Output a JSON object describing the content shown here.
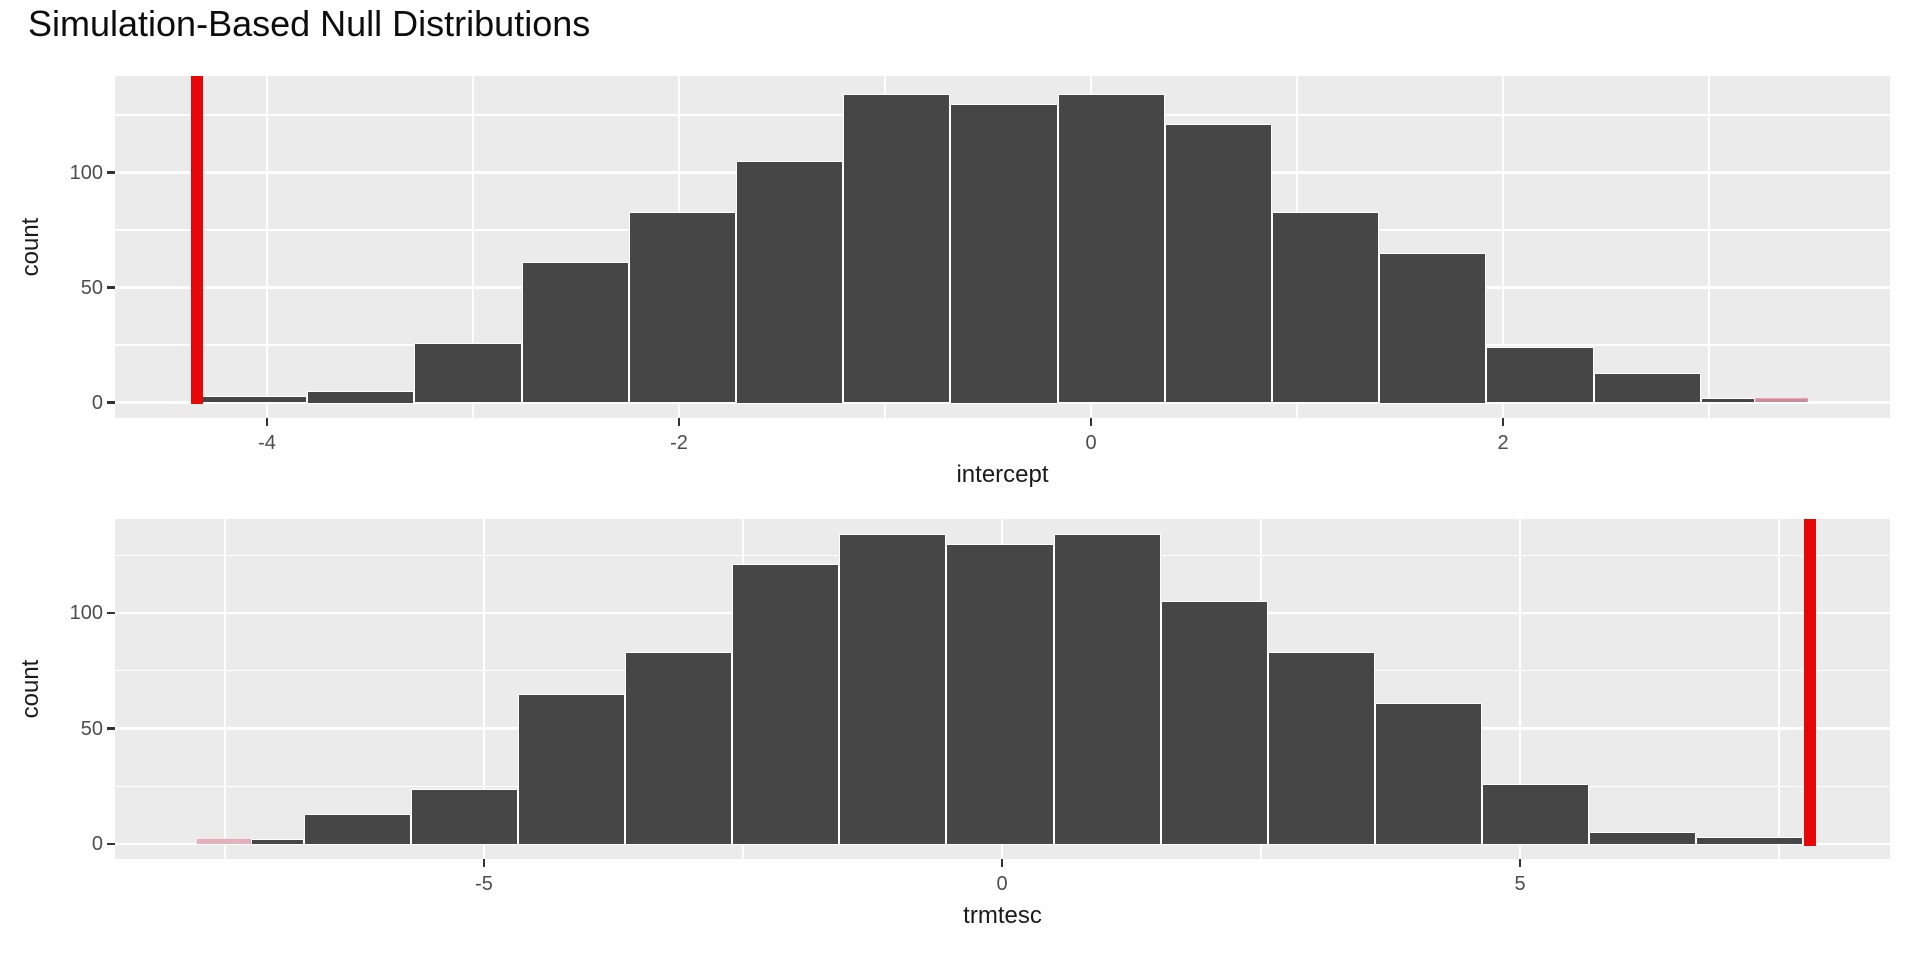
{
  "title": "Simulation-Based Null Distributions",
  "colors": {
    "panel_background": "#EBEBEB",
    "grid": "#FFFFFF",
    "bar_fill": "#464646",
    "bar_stroke": "#FFFFFF",
    "observed_line": "#E60808",
    "tick_text": "#4D4D4D",
    "axis_title_text": "#1A1A1A",
    "title_text": "#0D0D0D"
  },
  "chart_data": [
    {
      "type": "bar",
      "subtype": "simulation-null-histogram",
      "xlabel": "intercept",
      "ylabel": "count",
      "ylim": [
        0,
        140
      ],
      "grid": true,
      "x_ticks": [
        {
          "v": -4,
          "label": "-4"
        },
        {
          "v": -2,
          "label": "-2"
        },
        {
          "v": 0,
          "label": "0"
        },
        {
          "v": 2,
          "label": "2"
        }
      ],
      "x_minor": [
        -3,
        -1,
        1,
        3
      ],
      "y_ticks": [
        {
          "v": 0,
          "label": "0"
        },
        {
          "v": 50,
          "label": "50"
        },
        {
          "v": 100,
          "label": "100"
        }
      ],
      "y_minor": [
        25,
        75,
        125
      ],
      "observed_stat": -4.34,
      "shaded_fill": "#C98D98",
      "shaded_stroke": "#E8A2B2",
      "bars": [
        {
          "x0": -4.325,
          "x1": -3.805,
          "count": 3,
          "kind": "null"
        },
        {
          "x0": -3.805,
          "x1": -3.284,
          "count": 5,
          "kind": "null"
        },
        {
          "x0": -3.284,
          "x1": -2.764,
          "count": 26,
          "kind": "null"
        },
        {
          "x0": -2.764,
          "x1": -2.244,
          "count": 61,
          "kind": "null"
        },
        {
          "x0": -2.244,
          "x1": -1.723,
          "count": 83,
          "kind": "null"
        },
        {
          "x0": -1.723,
          "x1": -1.203,
          "count": 105,
          "kind": "null"
        },
        {
          "x0": -1.203,
          "x1": -0.683,
          "count": 134,
          "kind": "null"
        },
        {
          "x0": -0.683,
          "x1": -0.162,
          "count": 130,
          "kind": "null"
        },
        {
          "x0": -0.162,
          "x1": 0.358,
          "count": 134,
          "kind": "null"
        },
        {
          "x0": 0.358,
          "x1": 0.878,
          "count": 121,
          "kind": "null"
        },
        {
          "x0": 0.878,
          "x1": 1.399,
          "count": 83,
          "kind": "null"
        },
        {
          "x0": 1.399,
          "x1": 1.919,
          "count": 65,
          "kind": "null"
        },
        {
          "x0": 1.919,
          "x1": 2.44,
          "count": 24,
          "kind": "null"
        },
        {
          "x0": 2.44,
          "x1": 2.96,
          "count": 13,
          "kind": "null"
        },
        {
          "x0": 2.96,
          "x1": 3.221,
          "count": 2,
          "kind": "null"
        },
        {
          "x0": 3.221,
          "x1": 3.481,
          "count": 2,
          "kind": "shaded"
        }
      ]
    },
    {
      "type": "bar",
      "subtype": "simulation-null-histogram",
      "xlabel": "trmtesc",
      "ylabel": "count",
      "ylim": [
        0,
        140
      ],
      "grid": true,
      "x_ticks": [
        {
          "v": -5,
          "label": "-5"
        },
        {
          "v": 0,
          "label": "0"
        },
        {
          "v": 5,
          "label": "5"
        }
      ],
      "x_minor": [
        -7.5,
        -2.5,
        2.5,
        7.5
      ],
      "y_ticks": [
        {
          "v": 0,
          "label": "0"
        },
        {
          "v": 50,
          "label": "50"
        },
        {
          "v": 100,
          "label": "100"
        }
      ],
      "y_minor": [
        25,
        75,
        125
      ],
      "observed_stat": 7.8,
      "shaded_fill": "#E3B1BB",
      "shaded_stroke": "#EBA6B6",
      "bars": [
        {
          "x0": -7.77,
          "x1": -7.253,
          "count": 2,
          "kind": "shaded"
        },
        {
          "x0": -7.253,
          "x1": -6.737,
          "count": 2,
          "kind": "null"
        },
        {
          "x0": -6.737,
          "x1": -5.703,
          "count": 13,
          "kind": "null"
        },
        {
          "x0": -5.703,
          "x1": -4.67,
          "count": 24,
          "kind": "null"
        },
        {
          "x0": -4.67,
          "x1": -3.636,
          "count": 65,
          "kind": "null"
        },
        {
          "x0": -3.636,
          "x1": -2.603,
          "count": 83,
          "kind": "null"
        },
        {
          "x0": -2.603,
          "x1": -1.569,
          "count": 121,
          "kind": "null"
        },
        {
          "x0": -1.569,
          "x1": -0.536,
          "count": 134,
          "kind": "null"
        },
        {
          "x0": -0.536,
          "x1": 0.498,
          "count": 130,
          "kind": "null"
        },
        {
          "x0": 0.498,
          "x1": 1.531,
          "count": 134,
          "kind": "null"
        },
        {
          "x0": 1.531,
          "x1": 2.565,
          "count": 105,
          "kind": "null"
        },
        {
          "x0": 2.565,
          "x1": 3.598,
          "count": 83,
          "kind": "null"
        },
        {
          "x0": 3.598,
          "x1": 4.632,
          "count": 61,
          "kind": "null"
        },
        {
          "x0": 4.632,
          "x1": 5.665,
          "count": 26,
          "kind": "null"
        },
        {
          "x0": 5.665,
          "x1": 6.699,
          "count": 5,
          "kind": "null"
        },
        {
          "x0": 6.699,
          "x1": 7.732,
          "count": 3,
          "kind": "null"
        }
      ]
    }
  ]
}
